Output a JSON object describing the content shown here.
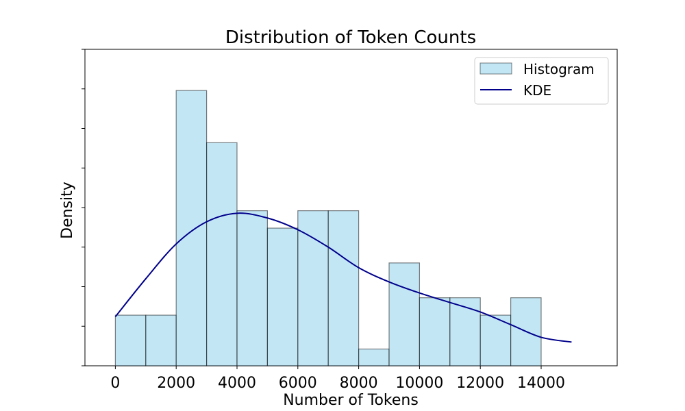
{
  "chart_data": {
    "type": "bar",
    "title": "Distribution of Token Counts",
    "xlabel": "Number of Tokens",
    "ylabel": "Density",
    "xlim": [
      -1000,
      16500
    ],
    "ylim": [
      0,
      1
    ],
    "x_ticks": [
      0,
      2000,
      4000,
      6000,
      8000,
      10000,
      12000,
      14000
    ],
    "y_tick_labels_visible": false,
    "grid": false,
    "legend_position": "top-right",
    "series": [
      {
        "name": "Histogram",
        "kind": "histogram",
        "color": "#87CEEB",
        "edge_color": "#000000",
        "bins": [
          {
            "x0": 0,
            "x1": 1000,
            "value": 0.16
          },
          {
            "x0": 1000,
            "x1": 2000,
            "value": 0.16
          },
          {
            "x0": 2000,
            "x1": 3000,
            "value": 0.87
          },
          {
            "x0": 3000,
            "x1": 4000,
            "value": 0.705
          },
          {
            "x0": 4000,
            "x1": 5000,
            "value": 0.49
          },
          {
            "x0": 5000,
            "x1": 6000,
            "value": 0.435
          },
          {
            "x0": 6000,
            "x1": 7000,
            "value": 0.49
          },
          {
            "x0": 7000,
            "x1": 8000,
            "value": 0.49
          },
          {
            "x0": 8000,
            "x1": 9000,
            "value": 0.053
          },
          {
            "x0": 9000,
            "x1": 10000,
            "value": 0.325
          },
          {
            "x0": 10000,
            "x1": 11000,
            "value": 0.215
          },
          {
            "x0": 11000,
            "x1": 12000,
            "value": 0.215
          },
          {
            "x0": 12000,
            "x1": 13000,
            "value": 0.16
          },
          {
            "x0": 13000,
            "x1": 14000,
            "value": 0.215
          }
        ]
      },
      {
        "name": "KDE",
        "kind": "line",
        "color": "#00008B",
        "points": [
          {
            "x": 0,
            "y": 0.155
          },
          {
            "x": 1000,
            "y": 0.275
          },
          {
            "x": 2000,
            "y": 0.385
          },
          {
            "x": 3000,
            "y": 0.455
          },
          {
            "x": 4000,
            "y": 0.482
          },
          {
            "x": 5000,
            "y": 0.467
          },
          {
            "x": 6000,
            "y": 0.43
          },
          {
            "x": 7000,
            "y": 0.375
          },
          {
            "x": 8000,
            "y": 0.31
          },
          {
            "x": 9000,
            "y": 0.265
          },
          {
            "x": 10000,
            "y": 0.23
          },
          {
            "x": 11000,
            "y": 0.2
          },
          {
            "x": 12000,
            "y": 0.17
          },
          {
            "x": 13000,
            "y": 0.13
          },
          {
            "x": 14000,
            "y": 0.09
          },
          {
            "x": 15000,
            "y": 0.075
          }
        ]
      }
    ]
  }
}
